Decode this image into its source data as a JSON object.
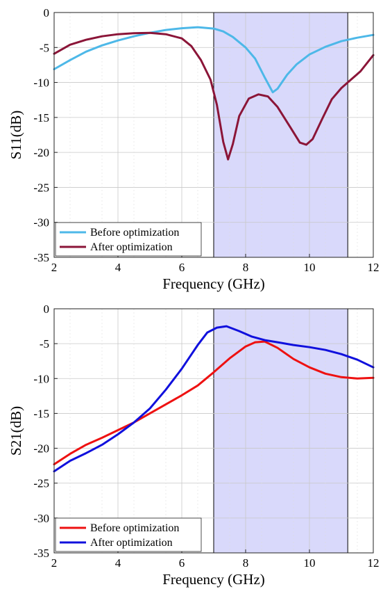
{
  "chart_data": [
    {
      "type": "line",
      "xlabel": "Frequency (GHz)",
      "ylabel": "S11(dB)",
      "xlim": [
        2,
        12
      ],
      "ylim": [
        -35,
        0
      ],
      "xticks": [
        2,
        4,
        6,
        8,
        10,
        12
      ],
      "yticks": [
        0,
        -5,
        -10,
        -15,
        -20,
        -25,
        -30,
        -35
      ],
      "grid": true,
      "legend_placement": "bottom-left",
      "highlight_band": {
        "x_from": 7.0,
        "x_to": 11.2,
        "fill": "#d9d9fb",
        "stroke": "#000000"
      },
      "series": [
        {
          "name": "Before optimization",
          "color": "#4db8e8",
          "points": [
            [
              2.0,
              -8.1
            ],
            [
              2.5,
              -6.8
            ],
            [
              3.0,
              -5.6
            ],
            [
              3.5,
              -4.7
            ],
            [
              4.0,
              -4.0
            ],
            [
              4.5,
              -3.4
            ],
            [
              5.0,
              -2.9
            ],
            [
              5.5,
              -2.5
            ],
            [
              6.0,
              -2.25
            ],
            [
              6.5,
              -2.1
            ],
            [
              7.0,
              -2.3
            ],
            [
              7.3,
              -2.7
            ],
            [
              7.6,
              -3.5
            ],
            [
              8.0,
              -5.0
            ],
            [
              8.3,
              -6.6
            ],
            [
              8.6,
              -9.3
            ],
            [
              8.85,
              -11.4
            ],
            [
              9.0,
              -10.9
            ],
            [
              9.3,
              -8.9
            ],
            [
              9.6,
              -7.4
            ],
            [
              10.0,
              -6.0
            ],
            [
              10.5,
              -4.9
            ],
            [
              11.0,
              -4.1
            ],
            [
              11.5,
              -3.6
            ],
            [
              12.0,
              -3.2
            ]
          ]
        },
        {
          "name": "After optimization",
          "color": "#8b1538",
          "points": [
            [
              2.0,
              -5.9
            ],
            [
              2.5,
              -4.6
            ],
            [
              3.0,
              -3.9
            ],
            [
              3.5,
              -3.4
            ],
            [
              4.0,
              -3.1
            ],
            [
              4.5,
              -2.95
            ],
            [
              5.0,
              -2.9
            ],
            [
              5.5,
              -3.1
            ],
            [
              6.0,
              -3.7
            ],
            [
              6.3,
              -4.8
            ],
            [
              6.6,
              -6.8
            ],
            [
              6.9,
              -9.6
            ],
            [
              7.1,
              -13.2
            ],
            [
              7.3,
              -18.5
            ],
            [
              7.45,
              -21.0
            ],
            [
              7.6,
              -18.8
            ],
            [
              7.8,
              -14.8
            ],
            [
              8.1,
              -12.3
            ],
            [
              8.4,
              -11.7
            ],
            [
              8.7,
              -12.0
            ],
            [
              9.0,
              -13.5
            ],
            [
              9.4,
              -16.4
            ],
            [
              9.7,
              -18.6
            ],
            [
              9.9,
              -18.9
            ],
            [
              10.1,
              -18.1
            ],
            [
              10.4,
              -15.2
            ],
            [
              10.7,
              -12.4
            ],
            [
              11.0,
              -10.8
            ],
            [
              11.3,
              -9.6
            ],
            [
              11.6,
              -8.4
            ],
            [
              12.0,
              -6.1
            ]
          ]
        }
      ]
    },
    {
      "type": "line",
      "xlabel": "Frequency (GHz)",
      "ylabel": "S21(dB)",
      "xlim": [
        2,
        12
      ],
      "ylim": [
        -35,
        0
      ],
      "xticks": [
        2,
        4,
        6,
        8,
        10,
        12
      ],
      "yticks": [
        0,
        -5,
        -10,
        -15,
        -20,
        -25,
        -30,
        -35
      ],
      "grid": true,
      "legend_placement": "bottom-left",
      "highlight_band": {
        "x_from": 7.0,
        "x_to": 11.2,
        "fill": "#d9d9fb",
        "stroke": "#000000"
      },
      "series": [
        {
          "name": "Before optimization",
          "color": "#ee1111",
          "points": [
            [
              2.0,
              -22.3
            ],
            [
              2.5,
              -20.8
            ],
            [
              3.0,
              -19.5
            ],
            [
              3.5,
              -18.5
            ],
            [
              4.0,
              -17.4
            ],
            [
              4.5,
              -16.3
            ],
            [
              5.0,
              -15.0
            ],
            [
              5.5,
              -13.7
            ],
            [
              6.0,
              -12.4
            ],
            [
              6.5,
              -11.0
            ],
            [
              7.0,
              -9.1
            ],
            [
              7.5,
              -7.1
            ],
            [
              8.0,
              -5.4
            ],
            [
              8.3,
              -4.8
            ],
            [
              8.6,
              -4.7
            ],
            [
              9.0,
              -5.6
            ],
            [
              9.5,
              -7.2
            ],
            [
              10.0,
              -8.4
            ],
            [
              10.5,
              -9.3
            ],
            [
              11.0,
              -9.8
            ],
            [
              11.5,
              -10.0
            ],
            [
              12.0,
              -9.9
            ]
          ]
        },
        {
          "name": "After optimization",
          "color": "#1010dd",
          "points": [
            [
              2.0,
              -23.3
            ],
            [
              2.5,
              -21.8
            ],
            [
              3.0,
              -20.7
            ],
            [
              3.5,
              -19.5
            ],
            [
              4.0,
              -18.0
            ],
            [
              4.5,
              -16.3
            ],
            [
              5.0,
              -14.3
            ],
            [
              5.5,
              -11.6
            ],
            [
              6.0,
              -8.6
            ],
            [
              6.5,
              -5.2
            ],
            [
              6.8,
              -3.4
            ],
            [
              7.1,
              -2.7
            ],
            [
              7.4,
              -2.5
            ],
            [
              7.8,
              -3.2
            ],
            [
              8.2,
              -4.0
            ],
            [
              8.6,
              -4.5
            ],
            [
              9.0,
              -4.8
            ],
            [
              9.5,
              -5.2
            ],
            [
              10.0,
              -5.5
            ],
            [
              10.5,
              -5.9
            ],
            [
              11.0,
              -6.5
            ],
            [
              11.5,
              -7.3
            ],
            [
              12.0,
              -8.4
            ]
          ]
        }
      ]
    }
  ]
}
